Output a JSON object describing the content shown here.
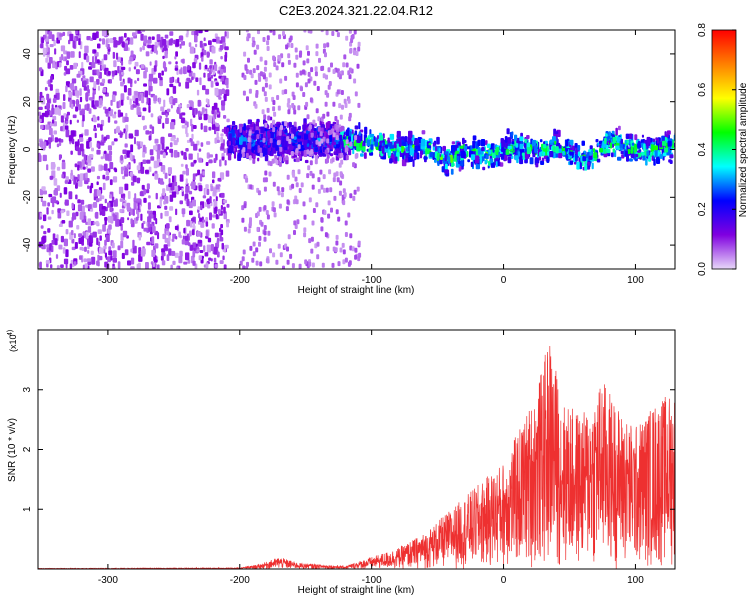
{
  "title": "C2E3.2024.321.22.04.R12",
  "chart_data": [
    {
      "type": "heatmap",
      "xlabel": "Height of straight line (km)",
      "ylabel": "Frequency (Hz)",
      "xlim": [
        -353,
        130
      ],
      "ylim": [
        -50,
        50
      ],
      "xticks": [
        -300,
        -200,
        -100,
        0,
        100
      ],
      "yticks": [
        -40,
        -20,
        0,
        20,
        40
      ],
      "colorbar": {
        "label": "Normalized spectral amplitude",
        "range": [
          0.0,
          0.8
        ],
        "ticks": [
          "0.0",
          "0.2",
          "0.4",
          "0.6",
          "0.8"
        ],
        "colormap": [
          "#e8d8f8",
          "#8000e0",
          "#0000ff",
          "#00ffff",
          "#00ff00",
          "#ffff00",
          "#ff8000",
          "#ff0000"
        ]
      },
      "regions": [
        {
          "x": [
            -353,
            -210
          ],
          "freq_span": [
            -50,
            50
          ],
          "amplitude": 0.1,
          "note_level": "broadband"
        },
        {
          "x": [
            -210,
            -125
          ],
          "freq_span": [
            -10,
            10
          ],
          "amplitude": 0.25,
          "note_level": "band"
        },
        {
          "x": [
            -125,
            130
          ],
          "freq_span": [
            -8,
            8
          ],
          "amplitude": 0.4,
          "note_level": "band"
        }
      ],
      "band_center": [
        {
          "x": -125,
          "f": 4
        },
        {
          "x": -100,
          "f": 2
        },
        {
          "x": -80,
          "f": 0
        },
        {
          "x": -60,
          "f": 1
        },
        {
          "x": -45,
          "f": -5
        },
        {
          "x": -30,
          "f": 0
        },
        {
          "x": -10,
          "f": -3
        },
        {
          "x": 0,
          "f": 1
        },
        {
          "x": 20,
          "f": 0
        },
        {
          "x": 40,
          "f": 1
        },
        {
          "x": 60,
          "f": -4
        },
        {
          "x": 80,
          "f": 3
        },
        {
          "x": 100,
          "f": 0
        },
        {
          "x": 130,
          "f": 1
        }
      ]
    },
    {
      "type": "line",
      "xlabel": "Height of straight line (km)",
      "ylabel": "SNR (10 * v/v)",
      "yscale_label": "(x10",
      "yscale_exp": "4",
      "xlim": [
        -353,
        130
      ],
      "ylim": [
        0,
        4
      ],
      "xticks": [
        -300,
        -200,
        -100,
        0,
        100
      ],
      "yticks": [
        1,
        2,
        3
      ],
      "color": "#ee3030",
      "envelope": [
        {
          "x": -353,
          "y": 0.01
        },
        {
          "x": -200,
          "y": 0.02
        },
        {
          "x": -185,
          "y": 0.08
        },
        {
          "x": -170,
          "y": 0.2
        },
        {
          "x": -155,
          "y": 0.1
        },
        {
          "x": -120,
          "y": 0.05
        },
        {
          "x": -100,
          "y": 0.2
        },
        {
          "x": -80,
          "y": 0.35
        },
        {
          "x": -60,
          "y": 0.6
        },
        {
          "x": -40,
          "y": 1.0
        },
        {
          "x": -20,
          "y": 1.4
        },
        {
          "x": 0,
          "y": 1.8
        },
        {
          "x": 15,
          "y": 2.5
        },
        {
          "x": 25,
          "y": 3.0
        },
        {
          "x": 35,
          "y": 3.9
        },
        {
          "x": 45,
          "y": 2.8
        },
        {
          "x": 60,
          "y": 2.6
        },
        {
          "x": 75,
          "y": 3.2
        },
        {
          "x": 90,
          "y": 2.6
        },
        {
          "x": 100,
          "y": 2.4
        },
        {
          "x": 115,
          "y": 2.8
        },
        {
          "x": 130,
          "y": 3.0
        }
      ]
    }
  ]
}
